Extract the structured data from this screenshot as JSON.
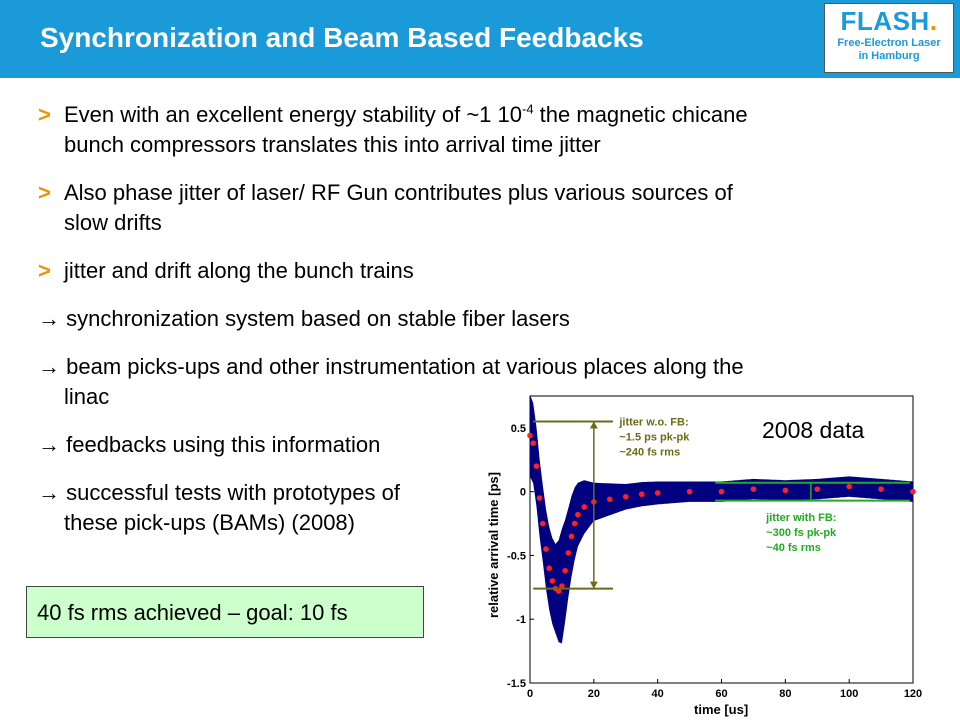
{
  "slide": {
    "title": "Synchronization and Beam Based Feedbacks",
    "logo": {
      "main": "FLASH",
      "dot": ".",
      "line1": "Free-Electron Laser",
      "line2": "in Hamburg"
    }
  },
  "bullets": [
    {
      "marker": ">",
      "line1_pre": "Even with an excellent energy stability of ~1 10",
      "sup": "-4",
      "line1_post": " the magnetic chicane",
      "line2": "bunch compressors translates this into arrival time jitter"
    },
    {
      "marker": ">",
      "line1": "Also phase jitter of laser/ RF Gun contributes plus various sources of",
      "line2": "slow drifts"
    },
    {
      "marker": ">",
      "line1": "jitter and drift along the bunch trains"
    }
  ],
  "arrows": [
    {
      "line1": "→ synchronization system based on stable fiber lasers"
    },
    {
      "line1": "→ beam picks-ups and other instrumentation at various places along the",
      "line2": "linac"
    },
    {
      "line1": "→ feedbacks using this information"
    },
    {
      "line1": "→ successful tests with prototypes of",
      "line2": "these pick-ups (BAMs) (2008)"
    }
  ],
  "goal_box": "40 fs rms achieved – goal: 10 fs",
  "chart_data": {
    "type": "scatter",
    "xlabel": "time [us]",
    "ylabel": "relative arrival time [ps]",
    "xlim": [
      0,
      120
    ],
    "ylim": [
      -1.5,
      0.75
    ],
    "xticks": [
      "0",
      "20",
      "40",
      "60",
      "80",
      "100",
      "120"
    ],
    "yticks": [
      "0.5",
      "0",
      "-0.5",
      "-1",
      "-1.5"
    ],
    "annotation_year": "2008 data",
    "annotation_nofb": [
      "jitter w.o. FB:",
      "~1.5 ps pk-pk",
      "~240 fs rms"
    ],
    "annotation_fb": [
      "jitter with FB:",
      "~300 fs pk-pk",
      "~40 fs rms"
    ],
    "colors": {
      "band": "#000080",
      "mean": "#ff2020",
      "nofb": "#6b6b1a",
      "fb": "#22aa22"
    },
    "nofb_range": [
      0.55,
      -0.76
    ],
    "fb_range": [
      0.07,
      -0.07
    ],
    "series": [
      {
        "points": [
          [
            0,
            0.44
          ],
          [
            1,
            0.38
          ],
          [
            2,
            0.2
          ],
          [
            3,
            -0.05
          ],
          [
            4,
            -0.25
          ],
          [
            5,
            -0.45
          ],
          [
            6,
            -0.6
          ],
          [
            7,
            -0.7
          ],
          [
            8,
            -0.76
          ],
          [
            9,
            -0.78
          ],
          [
            10,
            -0.74
          ],
          [
            11,
            -0.62
          ],
          [
            12,
            -0.48
          ],
          [
            13,
            -0.35
          ],
          [
            14,
            -0.25
          ],
          [
            15,
            -0.18
          ],
          [
            17,
            -0.12
          ],
          [
            20,
            -0.08
          ],
          [
            25,
            -0.06
          ],
          [
            30,
            -0.04
          ],
          [
            35,
            -0.02
          ],
          [
            40,
            -0.01
          ],
          [
            50,
            0
          ],
          [
            60,
            0
          ],
          [
            70,
            0.02
          ],
          [
            80,
            0.01
          ],
          [
            90,
            0.02
          ],
          [
            100,
            0.04
          ],
          [
            110,
            0.02
          ],
          [
            120,
            0
          ]
        ],
        "halfwidth": [
          [
            0,
            0.32
          ],
          [
            4,
            0.3
          ],
          [
            8,
            0.35
          ],
          [
            10,
            0.45
          ],
          [
            12,
            0.35
          ],
          [
            15,
            0.25
          ],
          [
            20,
            0.15
          ],
          [
            30,
            0.1
          ],
          [
            50,
            0.08
          ],
          [
            120,
            0.08
          ]
        ]
      }
    ]
  }
}
